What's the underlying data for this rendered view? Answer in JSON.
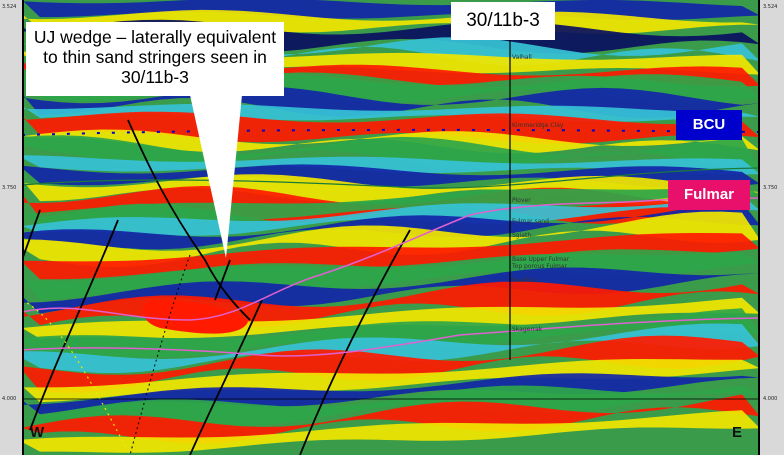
{
  "annotation": {
    "callout_text": "UJ wedge – laterally equivalent to thin sand stringers seen in 30/11b-3",
    "well_name": "30/11b-3"
  },
  "horizon_tags": {
    "bcu": {
      "label": "BCU",
      "color": "#0000cc"
    },
    "fulmar": {
      "label": "Fulmar",
      "color": "#e8106a"
    }
  },
  "depth_labels": {
    "top_left": "3.524",
    "top_right": "3.524",
    "mid_left": "3.750",
    "mid_right": "3.750",
    "bottom_left": "4.000",
    "bottom_right": "4.000"
  },
  "orientation": {
    "west": "W",
    "east": "E"
  },
  "well_log_labels": [
    "Valhall",
    "Kimmeridge Clay",
    "Plover",
    "Fulmar sand",
    "Sgiath",
    "Base Upper Fulmar",
    "Top porous Fulmar",
    "Heather",
    "Skagerrak"
  ],
  "colors": {
    "red": "#ff1a00",
    "yellow": "#f2e600",
    "green": "#2fa64a",
    "cyan": "#36c2d6",
    "blue": "#1226a8",
    "navy": "#0a1060"
  }
}
